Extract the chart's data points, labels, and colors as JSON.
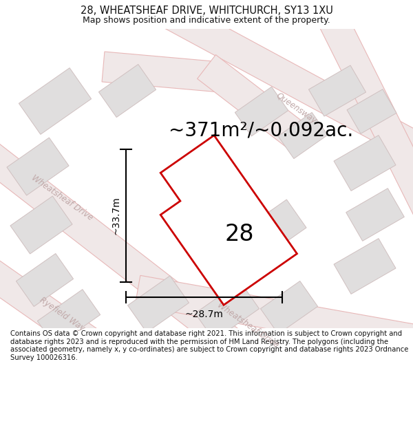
{
  "title": "28, WHEATSHEAF DRIVE, WHITCHURCH, SY13 1XU",
  "subtitle": "Map shows position and indicative extent of the property.",
  "area_label": "~371m²/~0.092ac.",
  "number_label": "28",
  "dim_width": "~28.7m",
  "dim_height": "~33.7m",
  "footer": "Contains OS data © Crown copyright and database right 2021. This information is subject to Crown copyright and database rights 2023 and is reproduced with the permission of HM Land Registry. The polygons (including the associated geometry, namely x, y co-ordinates) are subject to Crown copyright and database rights 2023 Ordnance Survey 100026316.",
  "map_bg": "#ffffff",
  "road_line_color": "#e8b8b8",
  "road_fill_color": "#f0e8e8",
  "block_fill": "#e0dede",
  "block_edge": "#d0c0c0",
  "plot_outline_color": "#cc0000",
  "plot_fill": "#ffffff",
  "road_label_color": "#c0a8a8",
  "title_fontsize": 10.5,
  "subtitle_fontsize": 9,
  "area_fontsize": 20,
  "number_fontsize": 24,
  "dim_fontsize": 10,
  "footer_fontsize": 7.2,
  "figsize": [
    6.0,
    6.25
  ],
  "dpi": 100
}
